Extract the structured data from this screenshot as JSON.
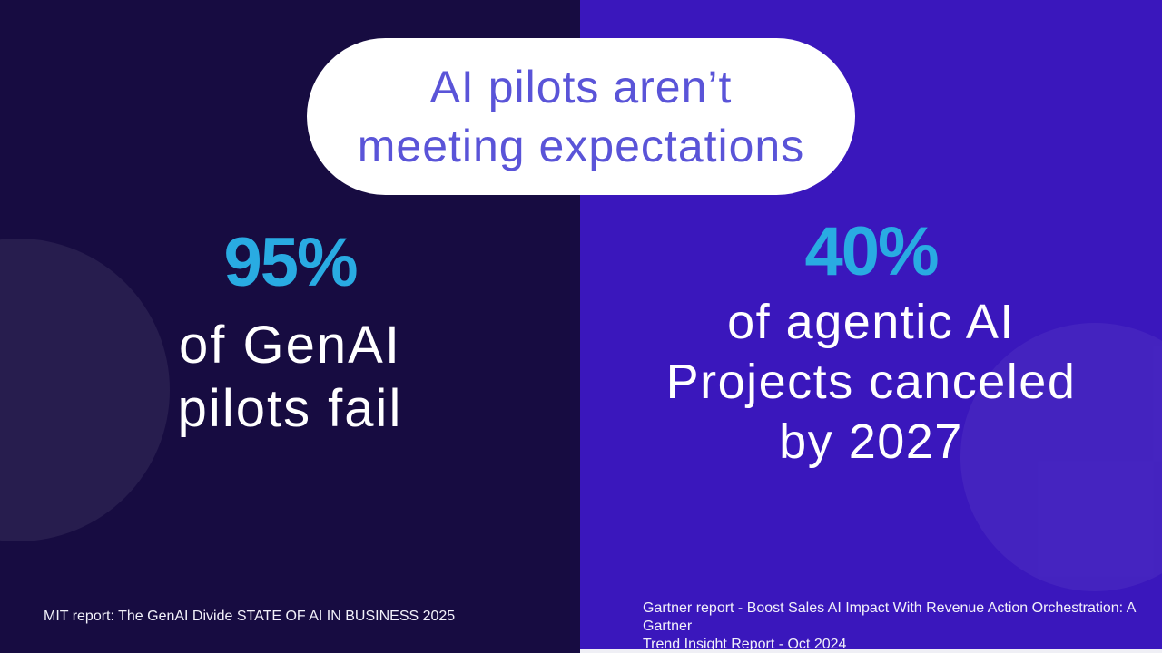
{
  "pill": {
    "lines": [
      "AI pilots aren’t",
      "meeting expectations"
    ]
  },
  "left_panel": {
    "stat_value": "95%",
    "description_lines": [
      "of GenAI",
      "pilots fail"
    ],
    "source": "MIT report: The GenAI Divide STATE OF AI IN BUSINESS 2025"
  },
  "right_panel": {
    "stat_value": "40%",
    "description_lines": [
      "of agentic AI",
      "Projects canceled",
      "by 2027"
    ],
    "source_lines": [
      "Gartner report - Boost Sales AI Impact With Revenue Action Orchestration: A Gartner",
      "Trend Insight Report - Oct 2024"
    ]
  },
  "colors": {
    "left_background": "#170C41",
    "right_background": "#3A17BC",
    "stat_accent_cyan": "#29ABE2",
    "pill_text_purple": "#5A54D8",
    "body_text": "#FFFFFF"
  }
}
